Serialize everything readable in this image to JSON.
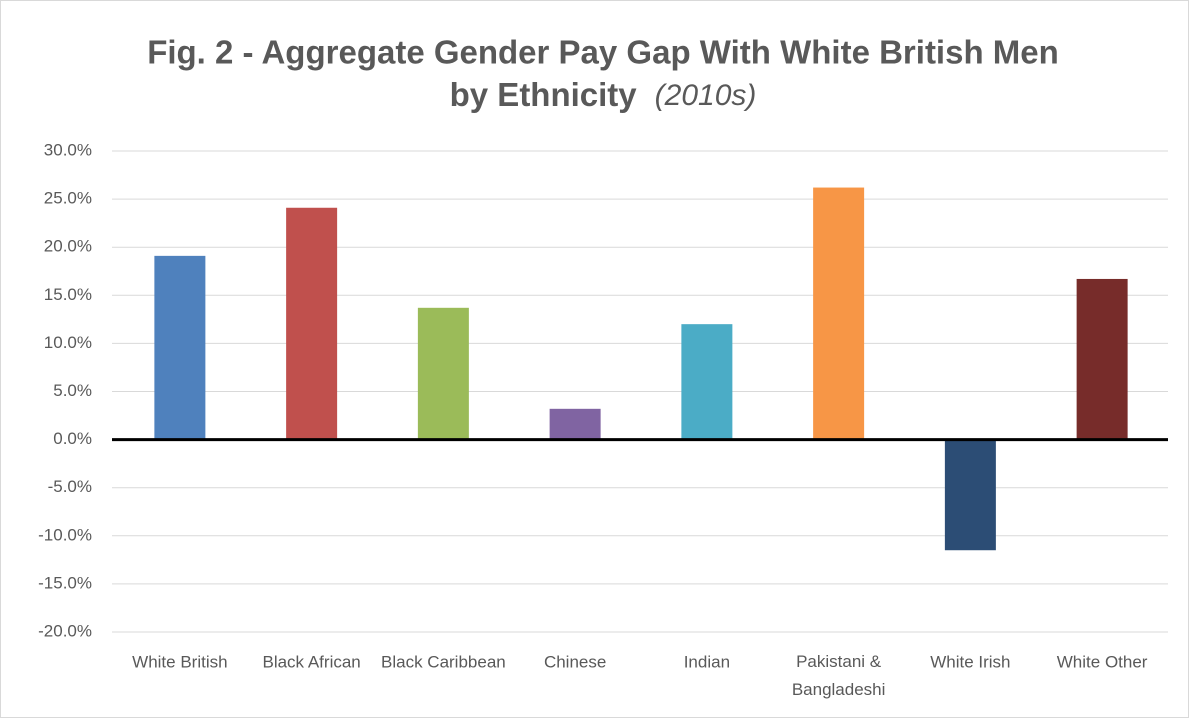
{
  "chart_data": {
    "type": "bar",
    "title": "Fig. 2 - Aggregate Gender Pay Gap With White British Men",
    "title_line2": "by Ethnicity",
    "subtitle": "(2010s)",
    "categories": [
      "White British",
      "Black African",
      "Black Caribbean",
      "Chinese",
      "Indian",
      "Pakistani & Bangladeshi",
      "White Irish",
      "White Other"
    ],
    "values": [
      19.1,
      24.1,
      13.7,
      3.2,
      12.0,
      26.2,
      -11.5,
      16.7
    ],
    "colors": [
      "#4f81bd",
      "#c0504d",
      "#9bbb59",
      "#8064a2",
      "#4bacc6",
      "#f79646",
      "#2c4d75",
      "#772c2a"
    ],
    "ylim": [
      -20,
      30
    ],
    "yticks": [
      {
        "value": -20,
        "label": "-20.0%"
      },
      {
        "value": -15,
        "label": "-15.0%"
      },
      {
        "value": -10,
        "label": "-10.0%"
      },
      {
        "value": -5,
        "label": "-5.0%"
      },
      {
        "value": 0,
        "label": "0.0%"
      },
      {
        "value": 5,
        "label": "5.0%"
      },
      {
        "value": 10,
        "label": "10.0%"
      },
      {
        "value": 15,
        "label": "15.0%"
      },
      {
        "value": 20,
        "label": "20.0%"
      },
      {
        "value": 25,
        "label": "25.0%"
      },
      {
        "value": 30,
        "label": "30.0%"
      }
    ],
    "grid": true
  }
}
